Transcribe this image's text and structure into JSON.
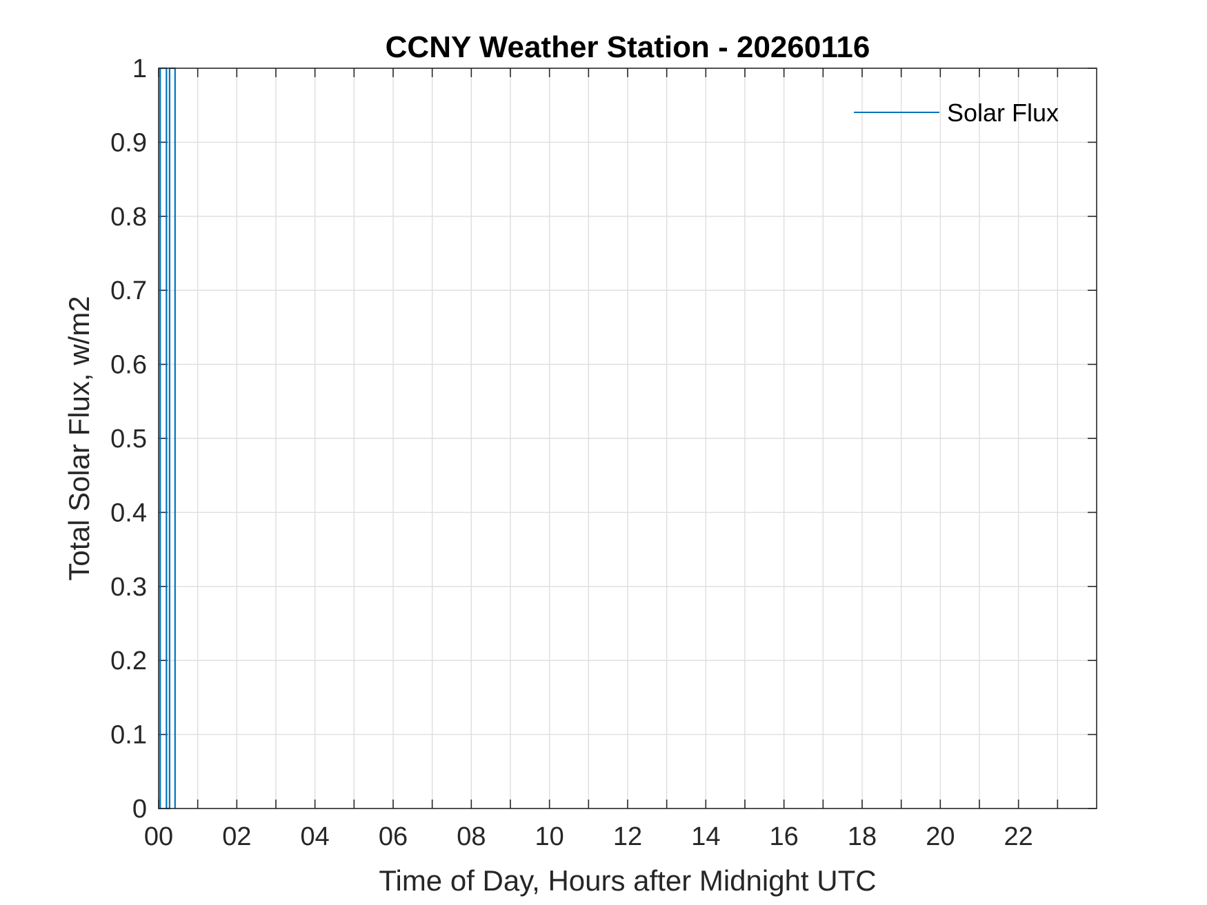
{
  "chart_data": {
    "type": "line",
    "title": "CCNY Weather Station - 20260116",
    "xlabel": "Time of Day, Hours after Midnight UTC",
    "ylabel": "Total Solar Flux, w/m2",
    "xlim": [
      0,
      24
    ],
    "ylim": [
      0,
      1
    ],
    "x_tick_values": [
      0,
      2,
      4,
      6,
      8,
      10,
      12,
      14,
      16,
      18,
      20,
      22
    ],
    "x_tick_labels": [
      "00",
      "02",
      "04",
      "06",
      "08",
      "10",
      "12",
      "14",
      "16",
      "18",
      "20",
      "22"
    ],
    "x_minor_grid_step": 1,
    "y_tick_values": [
      0,
      0.1,
      0.2,
      0.3,
      0.4,
      0.5,
      0.6,
      0.7,
      0.8,
      0.9,
      1
    ],
    "y_tick_labels": [
      "0",
      "0.1",
      "0.2",
      "0.3",
      "0.4",
      "0.5",
      "0.6",
      "0.7",
      "0.8",
      "0.9",
      "1"
    ],
    "grid": true,
    "legend_position": "top-right",
    "series": [
      {
        "name": "Solar Flux",
        "color": "#0072BD",
        "x": [
          0.0,
          0.04,
          0.04,
          0.2,
          0.2,
          0.28,
          0.28,
          0.42,
          0.42
        ],
        "y": [
          0,
          0,
          1,
          1,
          0,
          0,
          1,
          1,
          0
        ]
      }
    ]
  }
}
